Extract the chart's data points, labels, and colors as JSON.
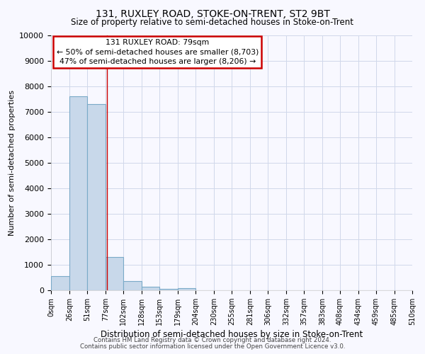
{
  "title1": "131, RUXLEY ROAD, STOKE-ON-TRENT, ST2 9BT",
  "title2": "Size of property relative to semi-detached houses in Stoke-on-Trent",
  "xlabel": "Distribution of semi-detached houses by size in Stoke-on-Trent",
  "ylabel": "Number of semi-detached properties",
  "bin_edges": [
    0,
    26,
    51,
    77,
    102,
    128,
    153,
    179,
    204,
    230,
    255,
    281,
    306,
    332,
    357,
    383,
    408,
    434,
    459,
    485,
    510
  ],
  "bin_heights": [
    550,
    7600,
    7300,
    1300,
    350,
    150,
    50,
    70,
    0,
    0,
    0,
    0,
    0,
    0,
    0,
    0,
    0,
    0,
    0,
    0
  ],
  "bar_color": "#c8d8ea",
  "bar_edge_color": "#7aaac8",
  "property_size": 79,
  "annotation_title": "131 RUXLEY ROAD: 79sqm",
  "annotation_line1": "← 50% of semi-detached houses are smaller (8,703)",
  "annotation_line2": "47% of semi-detached houses are larger (8,206) →",
  "annotation_box_color": "#ffffff",
  "annotation_box_edge_color": "#cc0000",
  "vline_color": "#cc0000",
  "ylim": [
    0,
    10000
  ],
  "yticks": [
    0,
    1000,
    2000,
    3000,
    4000,
    5000,
    6000,
    7000,
    8000,
    9000,
    10000
  ],
  "xtick_labels": [
    "0sqm",
    "26sqm",
    "51sqm",
    "77sqm",
    "102sqm",
    "128sqm",
    "153sqm",
    "179sqm",
    "204sqm",
    "230sqm",
    "255sqm",
    "281sqm",
    "306sqm",
    "332sqm",
    "357sqm",
    "383sqm",
    "408sqm",
    "434sqm",
    "459sqm",
    "485sqm",
    "510sqm"
  ],
  "footer1": "Contains HM Land Registry data © Crown copyright and database right 2024.",
  "footer2": "Contains public sector information licensed under the Open Government Licence v3.0.",
  "background_color": "#f8f8ff",
  "grid_color": "#d0d8ea"
}
